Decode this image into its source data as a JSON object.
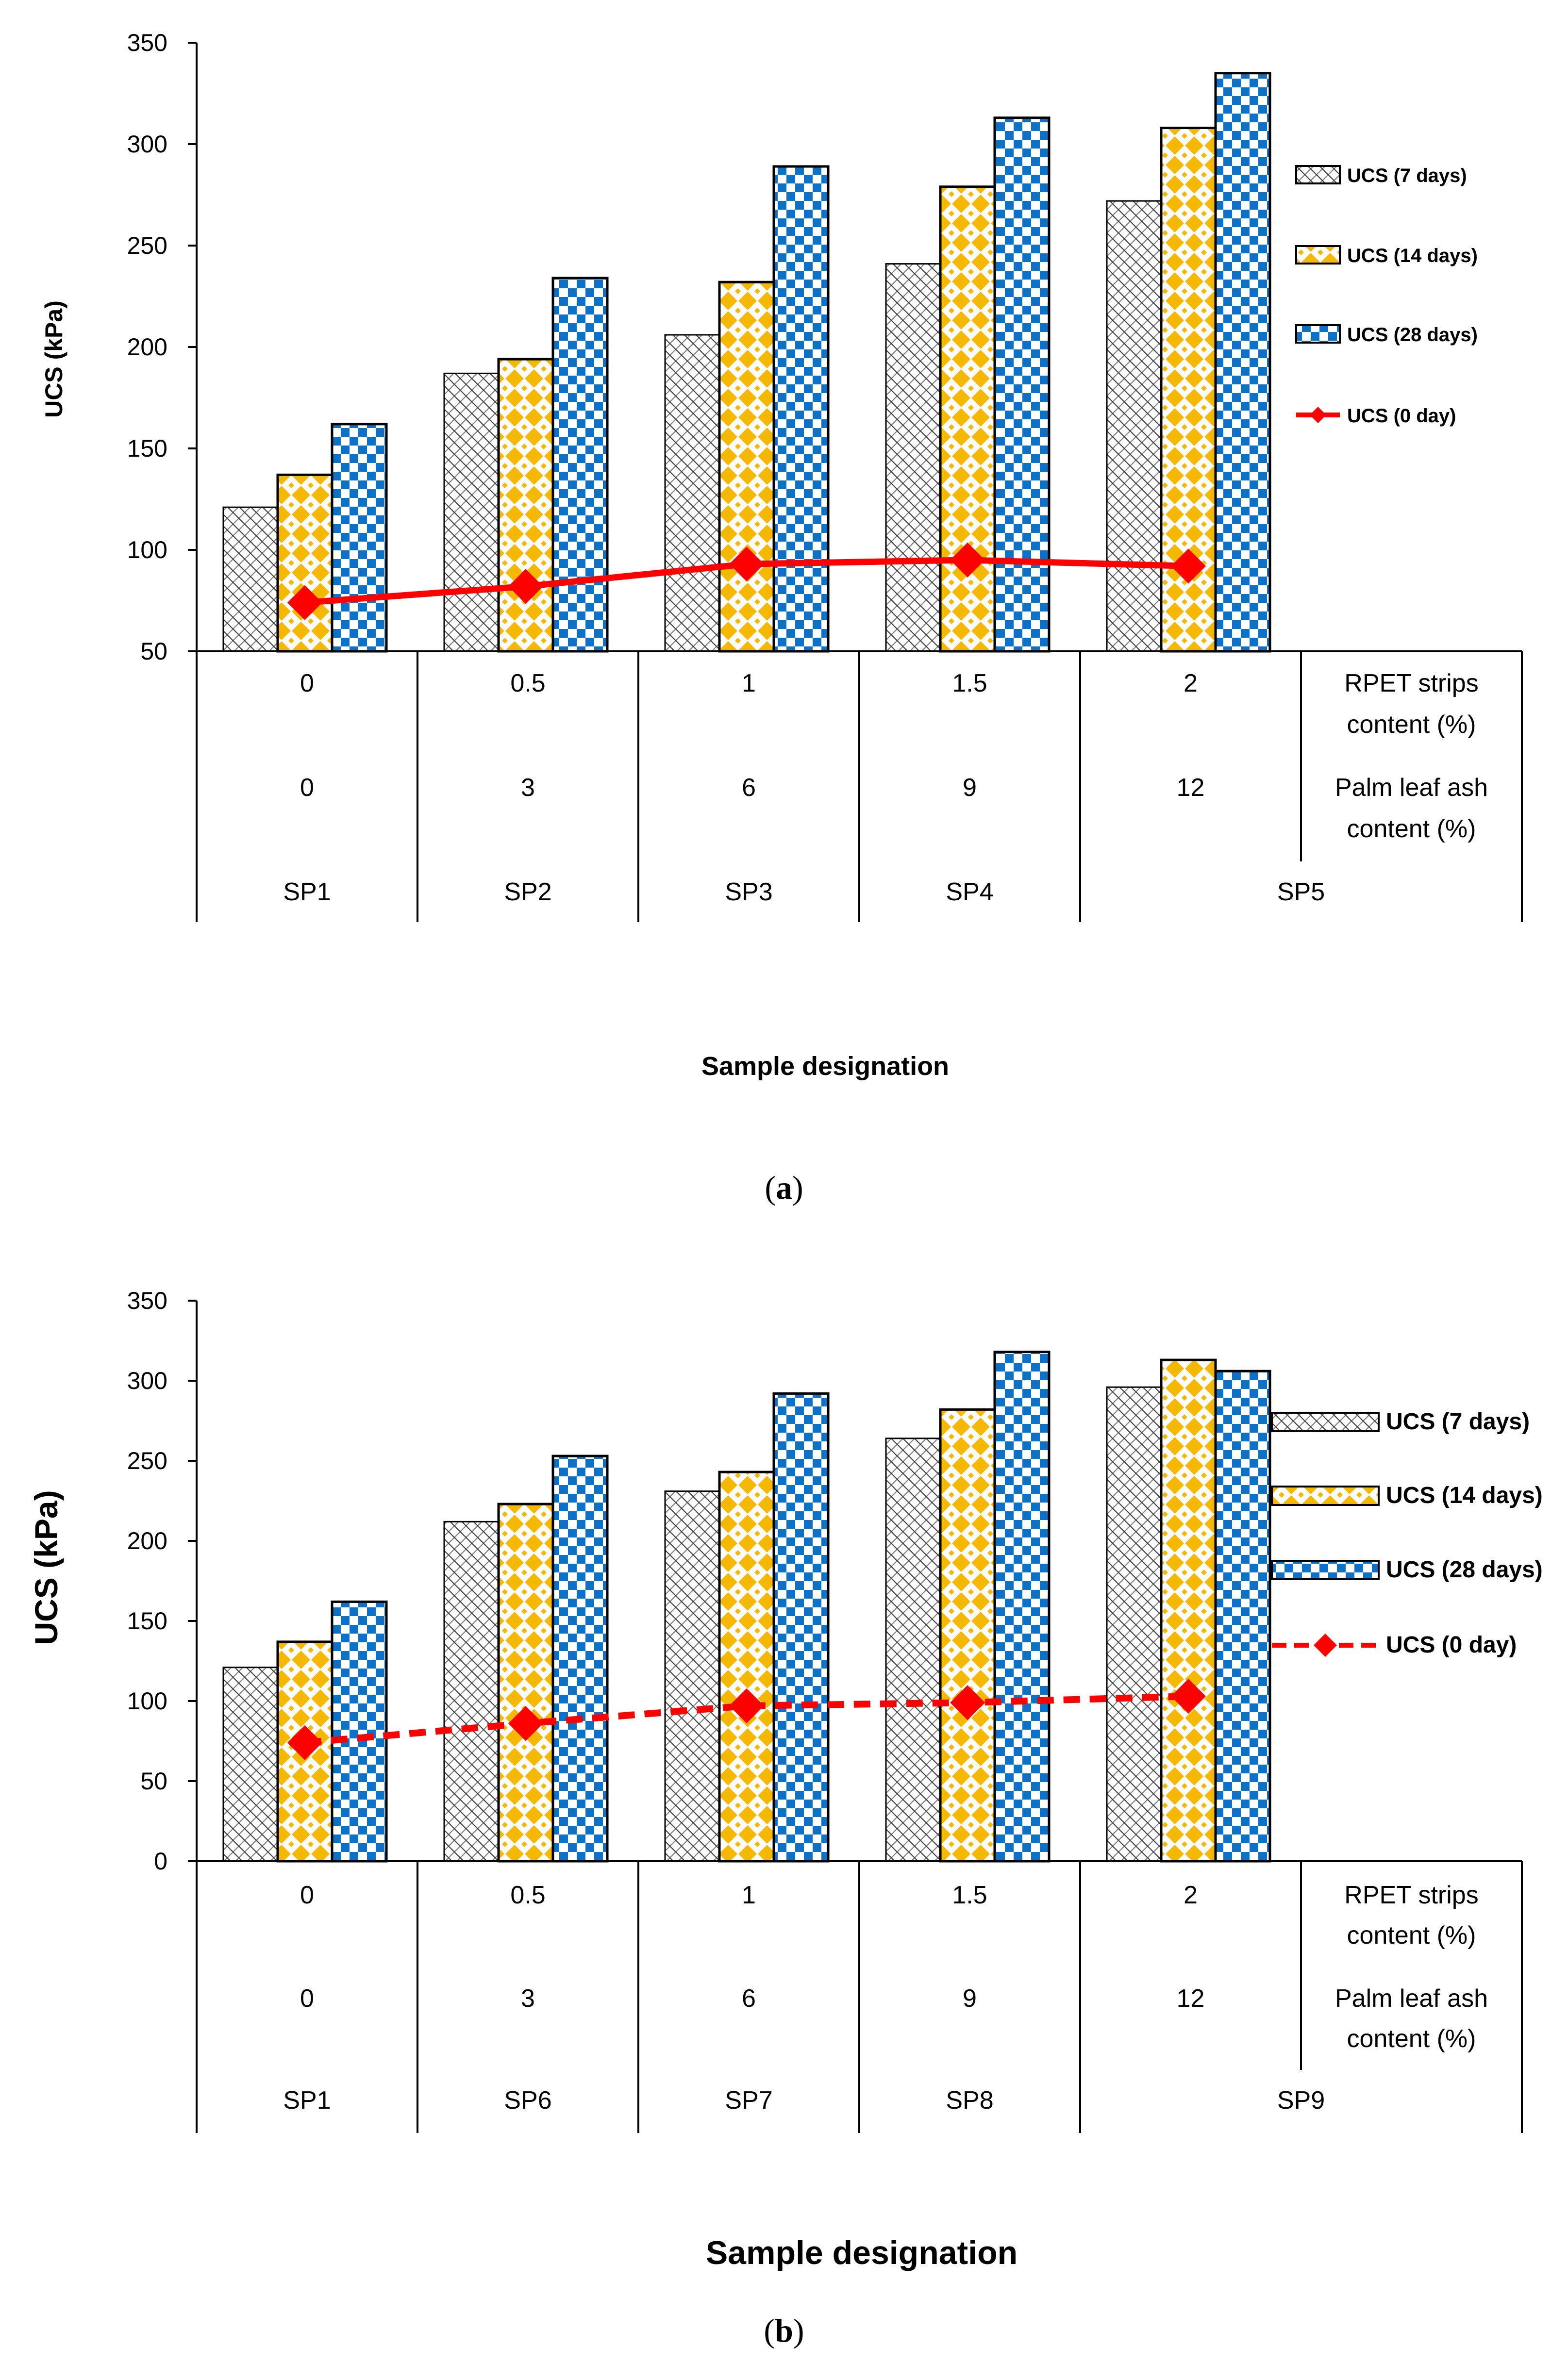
{
  "chart_data": [
    {
      "type": "bar",
      "panel": "(a)",
      "panel_letter": "a",
      "ylabel": "UCS (kPa)",
      "xlabel": "Sample designation",
      "ylim": [
        50,
        350
      ],
      "yticks": [
        "50",
        "100",
        "150",
        "200",
        "250",
        "300",
        "350"
      ],
      "categories": [
        "SP1",
        "SP2",
        "SP3",
        "SP4",
        "SP5"
      ],
      "rpet_content": [
        "0",
        "0.5",
        "1",
        "1.5",
        "2"
      ],
      "ash_content": [
        "0",
        "3",
        "6",
        "9",
        "12"
      ],
      "row_labels": {
        "rpet": [
          "RPET strips",
          "content (%)"
        ],
        "ash": [
          "Palm leaf ash",
          "content (%)"
        ]
      },
      "series": [
        {
          "name": "UCS (7 days)",
          "kind": "bar",
          "pattern": "crosshatch",
          "values": [
            121,
            187,
            206,
            241,
            272
          ]
        },
        {
          "name": "UCS (14 days)",
          "kind": "bar",
          "pattern": "diamond",
          "values": [
            137,
            194,
            232,
            279,
            308
          ]
        },
        {
          "name": "UCS (28 days)",
          "kind": "bar",
          "pattern": "checker",
          "values": [
            162,
            234,
            289,
            313,
            335
          ]
        },
        {
          "name": "UCS (0 day)",
          "kind": "line",
          "style": "solid",
          "values": [
            74,
            82,
            93,
            95,
            92
          ]
        }
      ],
      "legend_position": "right",
      "grid": false
    },
    {
      "type": "bar",
      "panel": "(b)",
      "panel_letter": "b",
      "ylabel": "UCS (kPa)",
      "xlabel": "Sample designation",
      "ylim": [
        0,
        350
      ],
      "yticks": [
        "0",
        "50",
        "100",
        "150",
        "200",
        "250",
        "300",
        "350"
      ],
      "categories": [
        "SP1",
        "SP6",
        "SP7",
        "SP8",
        "SP9"
      ],
      "rpet_content": [
        "0",
        "0.5",
        "1",
        "1.5",
        "2"
      ],
      "ash_content": [
        "0",
        "3",
        "6",
        "9",
        "12"
      ],
      "row_labels": {
        "rpet": [
          "RPET strips",
          "content (%)"
        ],
        "ash": [
          "Palm leaf ash",
          "content (%)"
        ]
      },
      "series": [
        {
          "name": "UCS (7 days)",
          "kind": "bar",
          "pattern": "crosshatch",
          "values": [
            121,
            212,
            231,
            264,
            296
          ]
        },
        {
          "name": "UCS (14 days)",
          "kind": "bar",
          "pattern": "diamond",
          "values": [
            137,
            223,
            243,
            282,
            313
          ]
        },
        {
          "name": "UCS (28 days)",
          "kind": "bar",
          "pattern": "checker",
          "values": [
            162,
            253,
            292,
            318,
            306
          ]
        },
        {
          "name": "UCS (0 day)",
          "kind": "line",
          "style": "dashed",
          "values": [
            74,
            86,
            97,
            99,
            103
          ]
        }
      ],
      "legend_position": "right",
      "grid": false
    }
  ],
  "colors": {
    "bar_outline": "#000000",
    "crosshatch_fill": "#ffffff",
    "crosshatch_ink": "#7f7f7f",
    "diamond_base": "#ffffff",
    "diamond_fill": "#f5b800",
    "checker_base": "#ffffff",
    "checker_fill": "#0d72c7",
    "line": "#ff0000",
    "marker": "#ff0000"
  }
}
